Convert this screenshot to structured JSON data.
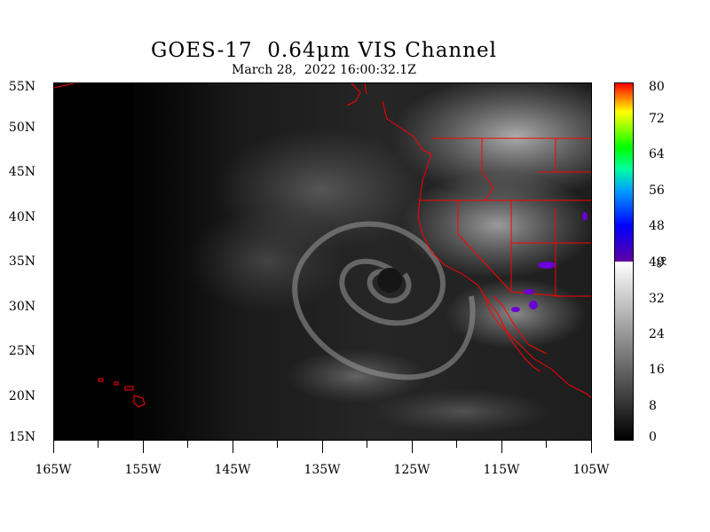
{
  "title": "GOES-17  0.64μm VIS Channel",
  "subtitle": "March 28,  2022 16:00:32.1Z",
  "map": {
    "lat_labels": [
      "55N",
      "50N",
      "45N",
      "40N",
      "35N",
      "30N",
      "25N",
      "20N",
      "15N"
    ],
    "lon_labels": [
      "165W",
      "155W",
      "145W",
      "135W",
      "125W",
      "115W",
      "105W"
    ],
    "lat_range": [
      15,
      55
    ],
    "lon_range": [
      -165,
      -105
    ],
    "border_color": "#ff0000",
    "features": [
      "Pacific low pressure cloud swirl",
      "Hawaiian Islands",
      "US West Coast"
    ]
  },
  "colorbar": {
    "ticks": [
      "80",
      "72",
      "64",
      "56",
      "48",
      "40",
      "32",
      "24",
      "16",
      "8",
      "0"
    ],
    "unit": "%",
    "range": [
      0,
      80
    ],
    "grayscale_range": [
      0,
      40
    ],
    "color_range": [
      40,
      80
    ]
  }
}
